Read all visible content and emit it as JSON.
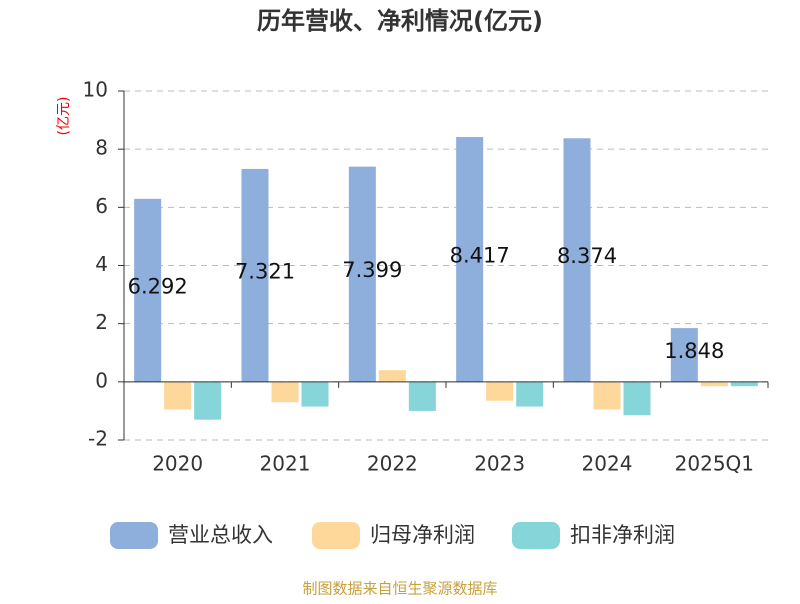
{
  "chart_data": {
    "type": "bar",
    "title": "历年营收、净利情况(亿元)",
    "y_label": "(亿元)",
    "source": "制图数据来自恒生聚源数据库",
    "categories": [
      "2020",
      "2021",
      "2022",
      "2023",
      "2024",
      "2025Q1"
    ],
    "series": [
      {
        "name": "营业总收入",
        "color": "#8eaedb",
        "values": [
          6.292,
          7.321,
          7.399,
          8.417,
          8.374,
          1.848
        ]
      },
      {
        "name": "归母净利润",
        "color": "#fdd89a",
        "values": [
          -0.95,
          -0.7,
          0.4,
          -0.65,
          -0.95,
          -0.15
        ]
      },
      {
        "name": "扣非净利润",
        "color": "#86d5d8",
        "values": [
          -1.3,
          -0.85,
          -1.0,
          -0.85,
          -1.15,
          -0.15
        ]
      }
    ],
    "ylim": [
      -2,
      10
    ],
    "yticks": [
      -2,
      0,
      2,
      4,
      6,
      8,
      10
    ],
    "grid": true
  }
}
